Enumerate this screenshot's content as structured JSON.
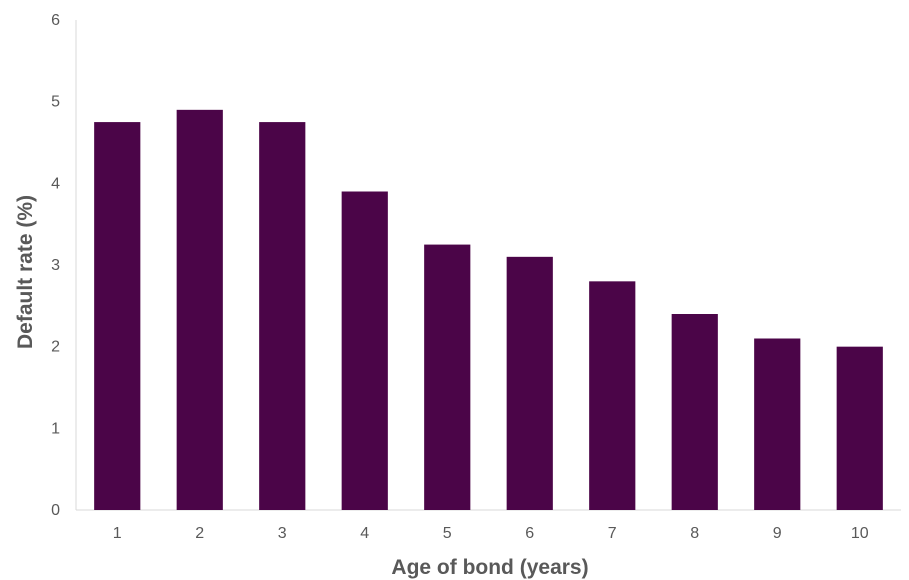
{
  "chart_data": {
    "type": "bar",
    "title": "",
    "xlabel": "Age of bond (years)",
    "ylabel": "Default rate (%)",
    "categories": [
      "1",
      "2",
      "3",
      "4",
      "5",
      "6",
      "7",
      "8",
      "9",
      "10"
    ],
    "series": [
      {
        "values": [
          4.75,
          4.9,
          4.75,
          3.9,
          3.25,
          3.1,
          2.8,
          2.4,
          2.1,
          2.0
        ]
      }
    ],
    "ylim": [
      0,
      6
    ],
    "yticks": [
      "0",
      "1",
      "2",
      "3",
      "4",
      "5",
      "6"
    ],
    "grid": false,
    "legend": "none",
    "bar_color": "#4B0548",
    "axis_color": "#d9d9d9",
    "text_color": "#595959"
  }
}
